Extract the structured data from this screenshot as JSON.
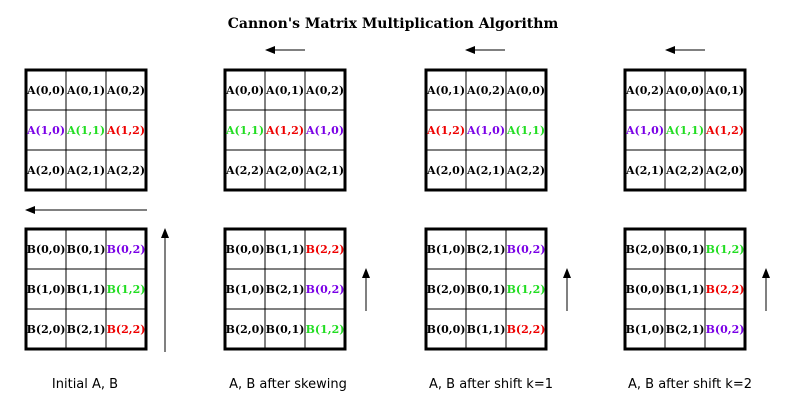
{
  "title": "Cannon's Matrix Multiplication Algorithm",
  "colors": {
    "black": "#000000",
    "purple": "#7a00e6",
    "green": "#22dd22",
    "red": "#ee0000"
  },
  "panels": [
    {
      "caption": "Initial A, B",
      "A": [
        [
          {
            "t": "A(0,0)",
            "c": "black"
          },
          {
            "t": "A(0,1)",
            "c": "black"
          },
          {
            "t": "A(0,2)",
            "c": "black"
          }
        ],
        [
          {
            "t": "A(1,0)",
            "c": "purple"
          },
          {
            "t": "A(1,1)",
            "c": "green"
          },
          {
            "t": "A(1,2)",
            "c": "red"
          }
        ],
        [
          {
            "t": "A(2,0)",
            "c": "black"
          },
          {
            "t": "A(2,1)",
            "c": "black"
          },
          {
            "t": "A(2,2)",
            "c": "black"
          }
        ]
      ],
      "B": [
        [
          {
            "t": "B(0,0)",
            "c": "black"
          },
          {
            "t": "B(0,1)",
            "c": "black"
          },
          {
            "t": "B(0,2)",
            "c": "purple"
          }
        ],
        [
          {
            "t": "B(1,0)",
            "c": "black"
          },
          {
            "t": "B(1,1)",
            "c": "black"
          },
          {
            "t": "B(1,2)",
            "c": "green"
          }
        ],
        [
          {
            "t": "B(2,0)",
            "c": "black"
          },
          {
            "t": "B(2,1)",
            "c": "black"
          },
          {
            "t": "B(2,2)",
            "c": "red"
          }
        ]
      ]
    },
    {
      "caption": "A, B after skewing",
      "A": [
        [
          {
            "t": "A(0,0)",
            "c": "black"
          },
          {
            "t": "A(0,1)",
            "c": "black"
          },
          {
            "t": "A(0,2)",
            "c": "black"
          }
        ],
        [
          {
            "t": "A(1,1)",
            "c": "green"
          },
          {
            "t": "A(1,2)",
            "c": "red"
          },
          {
            "t": "A(1,0)",
            "c": "purple"
          }
        ],
        [
          {
            "t": "A(2,2)",
            "c": "black"
          },
          {
            "t": "A(2,0)",
            "c": "black"
          },
          {
            "t": "A(2,1)",
            "c": "black"
          }
        ]
      ],
      "B": [
        [
          {
            "t": "B(0,0)",
            "c": "black"
          },
          {
            "t": "B(1,1)",
            "c": "black"
          },
          {
            "t": "B(2,2)",
            "c": "red"
          }
        ],
        [
          {
            "t": "B(1,0)",
            "c": "black"
          },
          {
            "t": "B(2,1)",
            "c": "black"
          },
          {
            "t": "B(0,2)",
            "c": "purple"
          }
        ],
        [
          {
            "t": "B(2,0)",
            "c": "black"
          },
          {
            "t": "B(0,1)",
            "c": "black"
          },
          {
            "t": "B(1,2)",
            "c": "green"
          }
        ]
      ]
    },
    {
      "caption": "A, B after shift k=1",
      "A": [
        [
          {
            "t": "A(0,1)",
            "c": "black"
          },
          {
            "t": "A(0,2)",
            "c": "black"
          },
          {
            "t": "A(0,0)",
            "c": "black"
          }
        ],
        [
          {
            "t": "A(1,2)",
            "c": "red"
          },
          {
            "t": "A(1,0)",
            "c": "purple"
          },
          {
            "t": "A(1,1)",
            "c": "green"
          }
        ],
        [
          {
            "t": "A(2,0)",
            "c": "black"
          },
          {
            "t": "A(2,1)",
            "c": "black"
          },
          {
            "t": "A(2,2)",
            "c": "black"
          }
        ]
      ],
      "B": [
        [
          {
            "t": "B(1,0)",
            "c": "black"
          },
          {
            "t": "B(2,1)",
            "c": "black"
          },
          {
            "t": "B(0,2)",
            "c": "purple"
          }
        ],
        [
          {
            "t": "B(2,0)",
            "c": "black"
          },
          {
            "t": "B(0,1)",
            "c": "black"
          },
          {
            "t": "B(1,2)",
            "c": "green"
          }
        ],
        [
          {
            "t": "B(0,0)",
            "c": "black"
          },
          {
            "t": "B(1,1)",
            "c": "black"
          },
          {
            "t": "B(2,2)",
            "c": "red"
          }
        ]
      ]
    },
    {
      "caption": "A, B after shift k=2",
      "A": [
        [
          {
            "t": "A(0,2)",
            "c": "black"
          },
          {
            "t": "A(0,0)",
            "c": "black"
          },
          {
            "t": "A(0,1)",
            "c": "black"
          }
        ],
        [
          {
            "t": "A(1,0)",
            "c": "purple"
          },
          {
            "t": "A(1,1)",
            "c": "green"
          },
          {
            "t": "A(1,2)",
            "c": "red"
          }
        ],
        [
          {
            "t": "A(2,1)",
            "c": "black"
          },
          {
            "t": "A(2,2)",
            "c": "black"
          },
          {
            "t": "A(2,0)",
            "c": "black"
          }
        ]
      ],
      "B": [
        [
          {
            "t": "B(2,0)",
            "c": "black"
          },
          {
            "t": "B(0,1)",
            "c": "black"
          },
          {
            "t": "B(1,2)",
            "c": "green"
          }
        ],
        [
          {
            "t": "B(0,0)",
            "c": "black"
          },
          {
            "t": "B(1,1)",
            "c": "black"
          },
          {
            "t": "B(2,2)",
            "c": "red"
          }
        ],
        [
          {
            "t": "B(1,0)",
            "c": "black"
          },
          {
            "t": "B(2,1)",
            "c": "black"
          },
          {
            "t": "B(0,2)",
            "c": "purple"
          }
        ]
      ]
    }
  ]
}
